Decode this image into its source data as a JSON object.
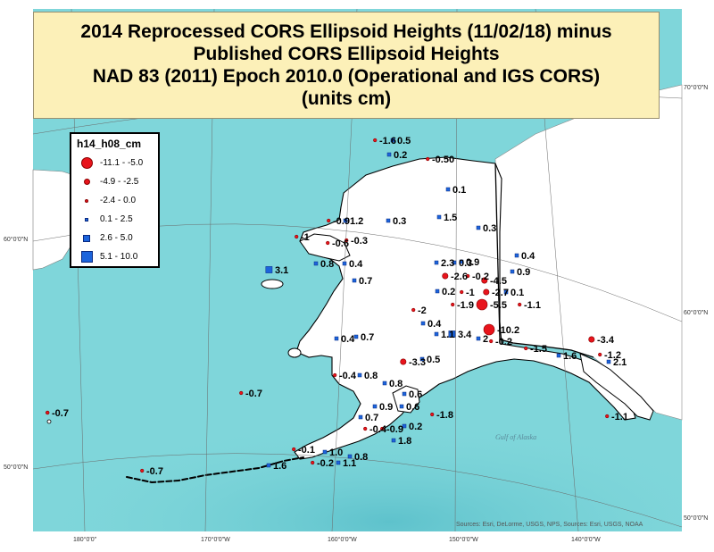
{
  "title": {
    "line1": "2014 Reprocessed CORS Ellipsoid Heights (11/02/18) minus",
    "line2": "Published CORS Ellipsoid Heights",
    "line3": "NAD 83 (2011) Epoch 2010.0 (Operational and IGS CORS)",
    "line4": "(units cm)"
  },
  "legend": {
    "title": "h14_h08_cm",
    "items": [
      {
        "label": "-11.1 - -5.0",
        "shape": "circle",
        "level": "large",
        "color": "#e8141c"
      },
      {
        "label": "-4.9 - -2.5",
        "shape": "circle",
        "level": "medium",
        "color": "#e8141c"
      },
      {
        "label": "-2.4 - 0.0",
        "shape": "circle",
        "level": "small",
        "color": "#e8141c"
      },
      {
        "label": "0.1 - 2.5",
        "shape": "square",
        "level": "small",
        "color": "#1c64dc"
      },
      {
        "label": "2.6 - 5.0",
        "shape": "square",
        "level": "medium",
        "color": "#1c64dc"
      },
      {
        "label": "5.1 - 10.0",
        "shape": "square",
        "level": "large",
        "color": "#1c64dc"
      }
    ]
  },
  "map_labels": {
    "station_values": [
      "-1.6",
      "0.5",
      "0.2",
      "-0.50",
      "0.1",
      "1.5",
      "0.3",
      "0.3",
      "-0.9",
      "1.2",
      "-1",
      "-0.6",
      "-0.3",
      "0.8",
      "0.4",
      "3.1",
      "0.7",
      "2.3",
      "0.3",
      "0.9",
      "-2.6",
      "-0.2",
      "-4.5",
      "0.4",
      "0.9",
      "0.2",
      "-1",
      "-2.7",
      "0.1",
      "-1.9",
      "-5.5",
      "-1.1",
      "-2",
      "0.4",
      "-10.2",
      "1.1",
      "0.4",
      "0.7",
      "3.4",
      "2",
      "-0.2",
      "-1.5",
      "-3.4",
      "1.6",
      "-1.2",
      "2.1",
      "-3.3",
      "0.5",
      "-0.4",
      "0.8",
      "0.8",
      "0.6",
      "-0.7",
      "0.9",
      "0.6",
      "-1.8",
      "0.7",
      "-0.4",
      "-0.9",
      "1.8",
      "-1.1",
      "0.2",
      "-0.1",
      "1.0",
      "0.8",
      "-0.2",
      "1.1",
      "1.6",
      "-0.7",
      "-0.7",
      "-0.4"
    ],
    "sea_name": "Gulf of Alaska",
    "longitude_ticks": [
      "180°0'0\"",
      "170°0'0\"W",
      "160°0'0\"W",
      "150°0'0\"W",
      "140°0'0\"W"
    ],
    "latitude_ticks_left": [
      "60°0'0\"N",
      "50°0'0\"N"
    ],
    "latitude_ticks_right": [
      "70°0'0\"N",
      "60°0'0\"N",
      "50°0'0\"N"
    ],
    "attribution": "Sources: Esri, DeLorme, USGS, NPS, Sources: Esri, USGS, NOAA"
  },
  "colors": {
    "ocean": "#7fd6da",
    "land": "#ffffff",
    "title_background": "#fcf0b8",
    "negative": "#e8141c",
    "positive": "#1c64dc"
  }
}
